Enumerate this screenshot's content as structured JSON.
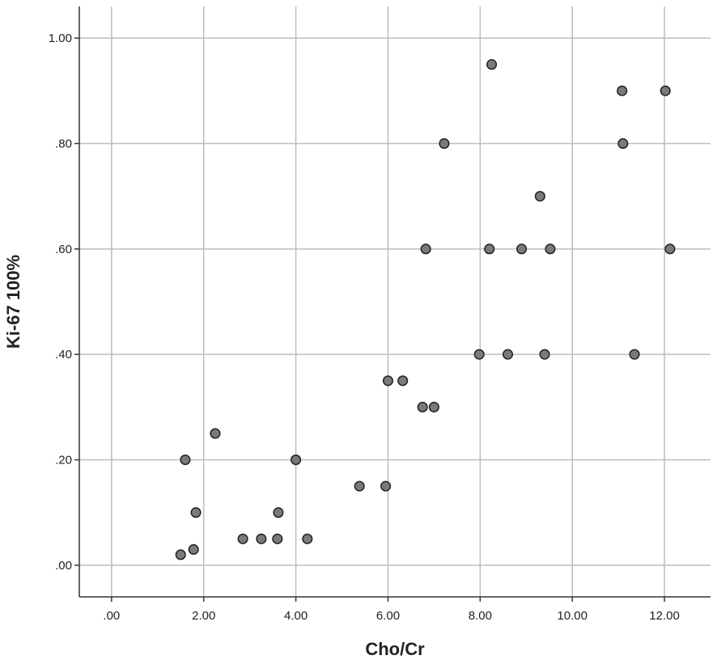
{
  "chart_data": {
    "type": "scatter",
    "title": "",
    "xlabel": "Cho/Cr",
    "ylabel": "Ki-67 100%",
    "xlim": [
      -0.7,
      13.0
    ],
    "ylim": [
      -0.06,
      1.06
    ],
    "x_ticks": [
      0,
      2,
      4,
      6,
      8,
      10,
      12
    ],
    "x_tick_labels": [
      ".00",
      "2.00",
      "4.00",
      "6.00",
      "8.00",
      "10.00",
      "12.00"
    ],
    "y_ticks": [
      0,
      0.2,
      0.4,
      0.6,
      0.8,
      1.0
    ],
    "y_tick_labels": [
      ".00",
      ".20",
      ".40",
      ".60",
      ".80",
      "1.00"
    ],
    "grid": true,
    "point_color": "#7a7a7a",
    "series": [
      {
        "points": [
          {
            "x": 1.5,
            "y": 0.02
          },
          {
            "x": 1.78,
            "y": 0.03
          },
          {
            "x": 1.6,
            "y": 0.2
          },
          {
            "x": 1.83,
            "y": 0.1
          },
          {
            "x": 2.25,
            "y": 0.25
          },
          {
            "x": 2.85,
            "y": 0.05
          },
          {
            "x": 3.25,
            "y": 0.05
          },
          {
            "x": 3.6,
            "y": 0.05
          },
          {
            "x": 3.62,
            "y": 0.1
          },
          {
            "x": 4.0,
            "y": 0.2
          },
          {
            "x": 4.25,
            "y": 0.05
          },
          {
            "x": 5.38,
            "y": 0.15
          },
          {
            "x": 5.95,
            "y": 0.15
          },
          {
            "x": 6.0,
            "y": 0.35
          },
          {
            "x": 6.32,
            "y": 0.35
          },
          {
            "x": 6.75,
            "y": 0.3
          },
          {
            "x": 7.0,
            "y": 0.3
          },
          {
            "x": 6.82,
            "y": 0.6
          },
          {
            "x": 7.22,
            "y": 0.8
          },
          {
            "x": 7.98,
            "y": 0.4
          },
          {
            "x": 8.2,
            "y": 0.6
          },
          {
            "x": 8.25,
            "y": 0.95
          },
          {
            "x": 8.6,
            "y": 0.4
          },
          {
            "x": 8.9,
            "y": 0.6
          },
          {
            "x": 9.3,
            "y": 0.7
          },
          {
            "x": 9.4,
            "y": 0.4
          },
          {
            "x": 9.52,
            "y": 0.6
          },
          {
            "x": 11.08,
            "y": 0.9
          },
          {
            "x": 11.1,
            "y": 0.8
          },
          {
            "x": 11.35,
            "y": 0.4
          },
          {
            "x": 12.02,
            "y": 0.9
          },
          {
            "x": 12.12,
            "y": 0.6
          }
        ]
      }
    ]
  }
}
